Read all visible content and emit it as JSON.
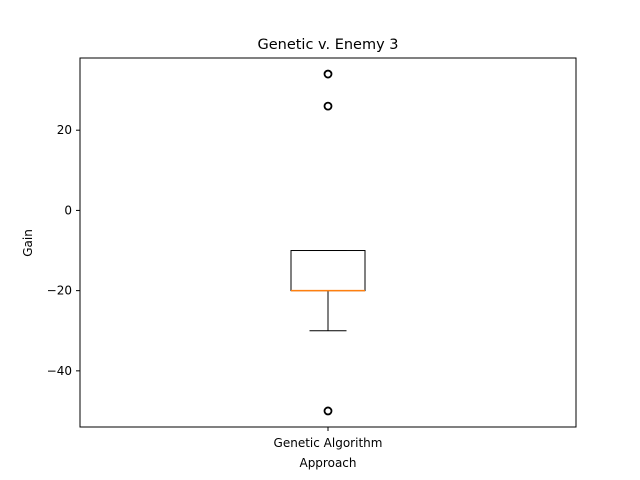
{
  "chart_data": {
    "type": "box",
    "title": "Genetic v. Enemy 3",
    "xlabel": "Approach",
    "ylabel": "Gain",
    "categories": [
      "Genetic Algorithm"
    ],
    "ylim": [
      -54,
      38
    ],
    "yticks": [
      20,
      0,
      -20,
      -40
    ],
    "yticklabels": [
      "20",
      "0",
      "−20",
      "−40"
    ],
    "boxes": [
      {
        "name": "Genetic Algorithm",
        "q1": -20,
        "median": -20,
        "q3": -10,
        "whisker_low": -30,
        "whisker_high": -10,
        "outliers": [
          34,
          26,
          -50
        ]
      }
    ],
    "colors": {
      "box": "#000000",
      "median": "#ff7f0e",
      "axes": "#000000"
    },
    "grid": false
  }
}
